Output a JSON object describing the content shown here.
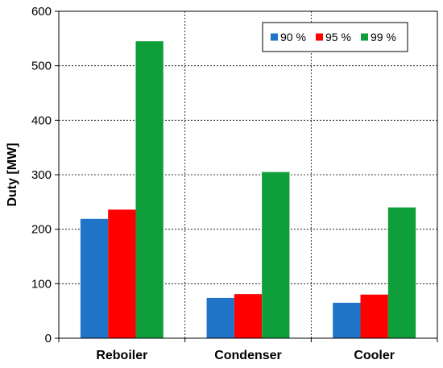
{
  "chart_data": {
    "type": "bar",
    "title": "",
    "xlabel": "",
    "ylabel": "Duty [MW]",
    "ylim": [
      0,
      600
    ],
    "yticks": [
      0,
      100,
      200,
      300,
      400,
      500,
      600
    ],
    "categories": [
      "Reboiler",
      "Condenser",
      "Cooler"
    ],
    "series": [
      {
        "name": "90 %",
        "color": "#1f74c8",
        "values": [
          219,
          74,
          65
        ]
      },
      {
        "name": "95 %",
        "color": "#ff0000",
        "values": [
          236,
          81,
          80
        ]
      },
      {
        "name": "99 %",
        "color": "#0e9f3b",
        "values": [
          545,
          305,
          240
        ]
      }
    ],
    "grid": true,
    "legend": "top-right"
  }
}
